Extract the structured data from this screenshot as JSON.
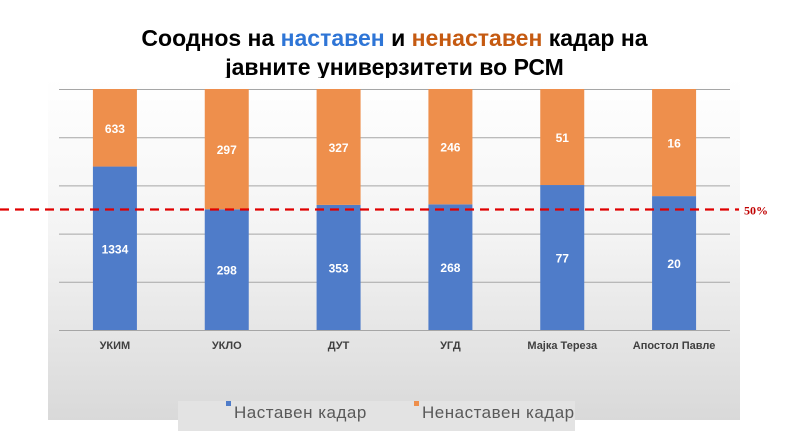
{
  "title": {
    "part1": "Соодноs на ",
    "highlight1": "наставен",
    "part2": " и ",
    "highlight2": "ненаставен",
    "part3": " кадар на",
    "line2": "јавните универзитети во РСМ"
  },
  "colors": {
    "teaching": "#4f7cc9",
    "non_teaching": "#ee8f4c",
    "threshold_line": "#e00000",
    "title_blue": "#2e75d6",
    "title_orange": "#c55a11"
  },
  "chart_data": {
    "type": "bar",
    "stacked": true,
    "normalized": "percent",
    "categories": [
      "УКИМ",
      "УКЛО",
      "ДУТ",
      "УГД",
      "Мајка Тереза",
      "Апостол Павле"
    ],
    "series": [
      {
        "name": "Наставен кадар",
        "values": [
          1334,
          298,
          353,
          268,
          77,
          20
        ]
      },
      {
        "name": "Ненаставен кадар",
        "values": [
          633,
          297,
          327,
          246,
          51,
          16
        ]
      }
    ],
    "ylim": [
      0,
      100
    ],
    "grid": true,
    "reference_line": {
      "value": 50,
      "label": "50%"
    },
    "legend_position": "bottom"
  }
}
